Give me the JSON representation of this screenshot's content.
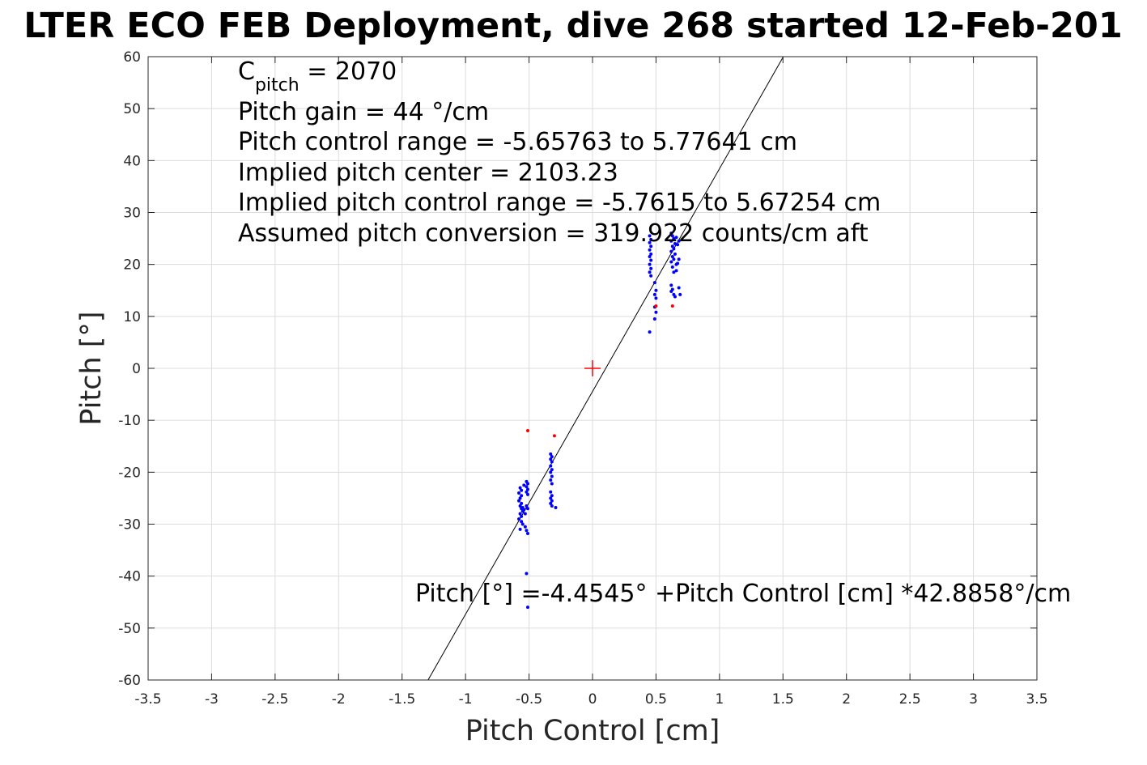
{
  "chart_data": {
    "type": "scatter",
    "title": "LTER ECO FEB Deployment, dive 268 started 12-Feb-201",
    "xlabel": "Pitch Control [cm]",
    "ylabel": "Pitch [°]",
    "xlim": [
      -3.5,
      3.5
    ],
    "ylim": [
      -60,
      60
    ],
    "xticks": [
      -3.5,
      -3,
      -2.5,
      -2,
      -1.5,
      -1,
      -0.5,
      0,
      0.5,
      1,
      1.5,
      2,
      2.5,
      3,
      3.5
    ],
    "xtick_labels": [
      "-3.5",
      "-3",
      "-2.5",
      "-2",
      "-1.5",
      "-1",
      "-0.5",
      "0",
      "0.5",
      "1",
      "1.5",
      "2",
      "2.5",
      "3",
      "3.5"
    ],
    "yticks": [
      -60,
      -50,
      -40,
      -30,
      -20,
      -10,
      0,
      10,
      20,
      30,
      40,
      50,
      60
    ],
    "ytick_labels": [
      "-60",
      "-50",
      "-40",
      "-30",
      "-20",
      "-10",
      "0",
      "10",
      "20",
      "30",
      "40",
      "50",
      "60"
    ],
    "grid": true,
    "colors": {
      "good": "#0000ff",
      "flagged": "#ff0000",
      "fit": "#000000",
      "grid": "#dcdcdc"
    },
    "fit_line": {
      "intercept": -4.4545,
      "slope": 42.8858
    },
    "center_marker": {
      "x": 0,
      "y": 0
    },
    "annotations": {
      "c_pitch_base": "C",
      "c_pitch_sub": "pitch",
      "c_pitch_value": " = 2070",
      "lines": [
        "Pitch gain = 44 °/cm",
        "Pitch control range = -5.65763 to 5.77641 cm",
        "Implied pitch center = 2103.23",
        "Implied pitch control range = -5.7615 to 5.67254 cm",
        "Assumed pitch conversion = 319.922 counts/cm aft"
      ],
      "fit_equation": "Pitch [°] =-4.4545° +Pitch Control [cm] *42.8858°/cm"
    },
    "series": [
      {
        "role": "good",
        "points": [
          [
            -0.57,
            -23
          ],
          [
            -0.56,
            -23.5
          ],
          [
            -0.58,
            -24
          ],
          [
            -0.56,
            -24.5
          ],
          [
            -0.57,
            -25
          ],
          [
            -0.58,
            -25.5
          ],
          [
            -0.56,
            -26
          ],
          [
            -0.57,
            -26.5
          ],
          [
            -0.56,
            -27
          ],
          [
            -0.55,
            -27.5
          ],
          [
            -0.57,
            -28
          ],
          [
            -0.56,
            -28.5
          ],
          [
            -0.58,
            -29
          ],
          [
            -0.56,
            -29.5
          ],
          [
            -0.55,
            -30
          ],
          [
            -0.57,
            -31
          ],
          [
            -0.54,
            -22.5
          ],
          [
            -0.55,
            -26.8
          ],
          [
            -0.54,
            -27.2
          ],
          [
            -0.53,
            -28
          ],
          [
            -0.52,
            -21.8
          ],
          [
            -0.51,
            -22.2
          ],
          [
            -0.52,
            -22.8
          ],
          [
            -0.51,
            -23.3
          ],
          [
            -0.52,
            -23.8
          ],
          [
            -0.51,
            -24.3
          ],
          [
            -0.52,
            -26.5
          ],
          [
            -0.51,
            -27
          ],
          [
            -0.53,
            -30.5
          ],
          [
            -0.52,
            -31.2
          ],
          [
            -0.51,
            -31.8
          ],
          [
            -0.52,
            -39.5
          ],
          [
            -0.51,
            -46
          ],
          [
            -0.33,
            -16.5
          ],
          [
            -0.32,
            -17
          ],
          [
            -0.33,
            -17.5
          ],
          [
            -0.32,
            -18
          ],
          [
            -0.33,
            -18.8
          ],
          [
            -0.32,
            -19.5
          ],
          [
            -0.33,
            -20
          ],
          [
            -0.32,
            -20.8
          ],
          [
            -0.33,
            -21.5
          ],
          [
            -0.32,
            -22.2
          ],
          [
            -0.33,
            -23.8
          ],
          [
            -0.32,
            -24.5
          ],
          [
            -0.33,
            -25
          ],
          [
            -0.32,
            -25.5
          ],
          [
            -0.33,
            -26
          ],
          [
            -0.32,
            -26.5
          ],
          [
            -0.29,
            -26.8
          ],
          [
            0.45,
            25.5
          ],
          [
            0.46,
            24.8
          ],
          [
            0.45,
            24.2
          ],
          [
            0.46,
            23.5
          ],
          [
            0.45,
            22.8
          ],
          [
            0.46,
            22
          ],
          [
            0.45,
            21.5
          ],
          [
            0.46,
            20.8
          ],
          [
            0.45,
            20
          ],
          [
            0.46,
            19.2
          ],
          [
            0.45,
            18.5
          ],
          [
            0.46,
            17.8
          ],
          [
            0.45,
            7
          ],
          [
            0.49,
            16.5
          ],
          [
            0.5,
            15
          ],
          [
            0.49,
            14.2
          ],
          [
            0.5,
            13.5
          ],
          [
            0.49,
            11.8
          ],
          [
            0.5,
            10.8
          ],
          [
            0.49,
            9.5
          ],
          [
            0.62,
            26
          ],
          [
            0.63,
            25.5
          ],
          [
            0.64,
            25
          ],
          [
            0.62,
            24.5
          ],
          [
            0.65,
            24
          ],
          [
            0.63,
            23.5
          ],
          [
            0.64,
            23
          ],
          [
            0.62,
            22.5
          ],
          [
            0.65,
            22
          ],
          [
            0.63,
            21.5
          ],
          [
            0.64,
            21
          ],
          [
            0.62,
            20.5
          ],
          [
            0.66,
            20
          ],
          [
            0.63,
            19.5
          ],
          [
            0.64,
            18.5
          ],
          [
            0.62,
            16
          ],
          [
            0.63,
            15.2
          ],
          [
            0.64,
            14.2
          ],
          [
            0.62,
            14.8
          ],
          [
            0.65,
            13.8
          ],
          [
            0.68,
            24.5
          ],
          [
            0.67,
            23.8
          ],
          [
            0.68,
            21
          ],
          [
            0.67,
            20.2
          ],
          [
            0.68,
            15.5
          ],
          [
            0.69,
            14.2
          ],
          [
            0.66,
            25.2
          ],
          [
            0.66,
            18.8
          ]
        ]
      },
      {
        "role": "flagged",
        "points": [
          [
            -0.51,
            -12
          ],
          [
            -0.3,
            -13
          ],
          [
            0.5,
            12
          ],
          [
            0.63,
            12
          ]
        ]
      }
    ]
  }
}
